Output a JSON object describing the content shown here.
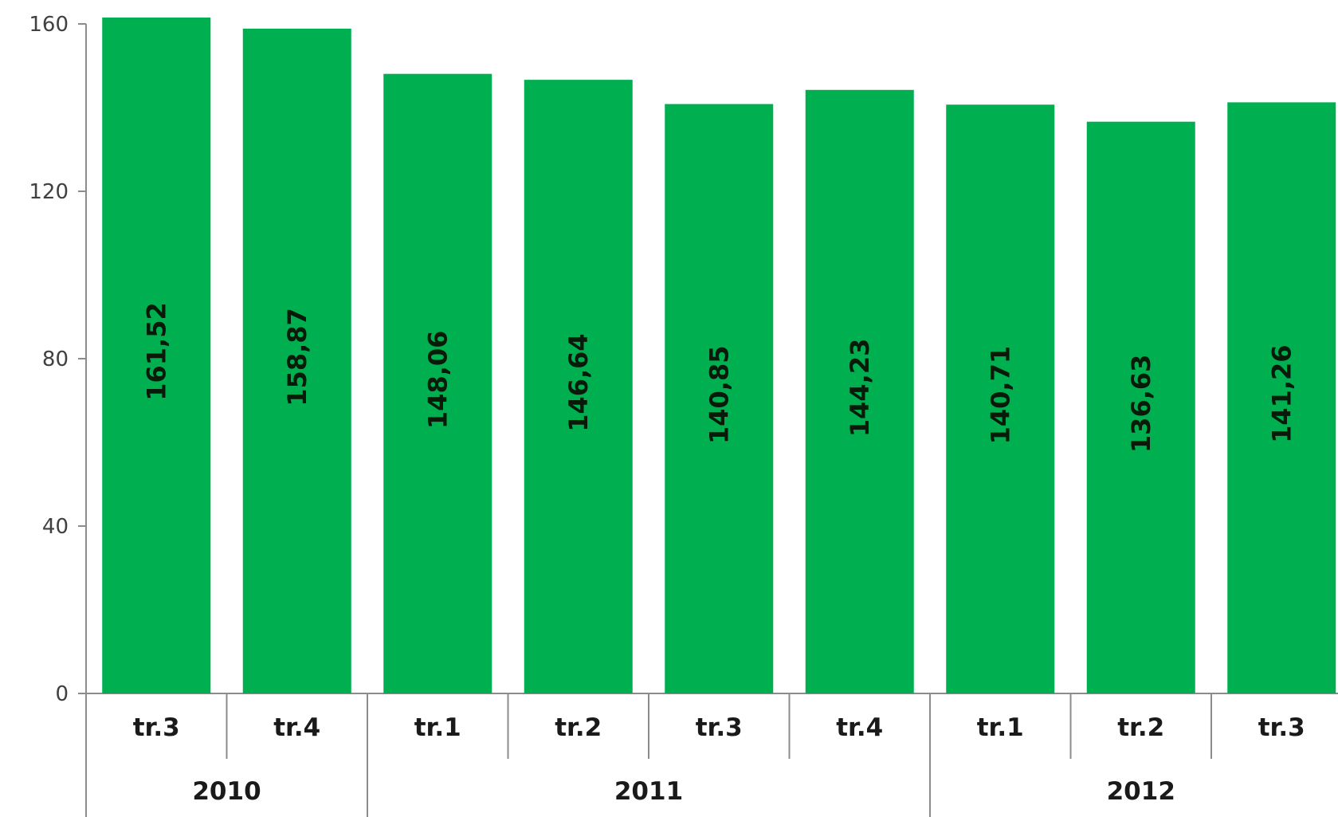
{
  "chart_data": {
    "type": "bar",
    "categories": [
      "tr.3",
      "tr.4",
      "tr.1",
      "tr.2",
      "tr.3",
      "tr.4",
      "tr.1",
      "tr.2",
      "tr.3"
    ],
    "values": [
      161.52,
      158.87,
      148.06,
      146.64,
      140.85,
      144.23,
      140.71,
      136.63,
      141.26
    ],
    "data_labels": [
      "161,52",
      "158,87",
      "148,06",
      "146,64",
      "140,85",
      "144,23",
      "140,71",
      "136,63",
      "141,26"
    ],
    "groups": [
      {
        "label": "2010",
        "count": 2
      },
      {
        "label": "2011",
        "count": 4
      },
      {
        "label": "2012",
        "count": 3
      }
    ],
    "yticks": [
      0,
      40,
      80,
      120,
      160
    ],
    "ylim": [
      0,
      160
    ],
    "bar_color": "#00b050",
    "axis_color": "#8c8c8c",
    "grid": false,
    "legend": "none"
  }
}
